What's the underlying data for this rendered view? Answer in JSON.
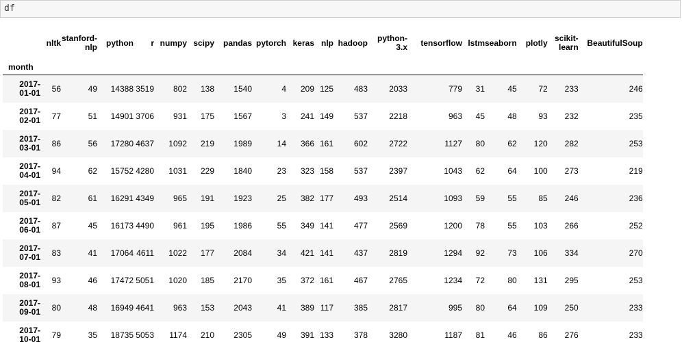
{
  "input": {
    "code": "df"
  },
  "table": {
    "index_name": "month",
    "columns": [
      "nltk",
      "stanford-nlp",
      "python",
      "r",
      "numpy",
      "scipy",
      "pandas",
      "pytorch",
      "keras",
      "nlp",
      "hadoop",
      "python-3.x",
      "tensorflow",
      "lstm",
      "seaborn",
      "plotly",
      "scikit-learn",
      "BeautifulSoup"
    ],
    "column_display": [
      [
        "nltk"
      ],
      [
        "stanford-",
        "nlp"
      ],
      [
        "python"
      ],
      [
        "r"
      ],
      [
        "numpy"
      ],
      [
        "scipy"
      ],
      [
        "pandas"
      ],
      [
        "pytorch"
      ],
      [
        "keras"
      ],
      [
        "nlp"
      ],
      [
        "hadoop"
      ],
      [
        "python-",
        "3.x"
      ],
      [
        "tensorflow"
      ],
      [
        "lstm"
      ],
      [
        "seaborn"
      ],
      [
        "plotly"
      ],
      [
        "scikit-",
        "learn"
      ],
      [
        "BeautifulSoup"
      ]
    ],
    "rows": [
      {
        "index": [
          "2017-",
          "01-01"
        ],
        "values": [
          "56",
          "49",
          "14388",
          "3519",
          "802",
          "138",
          "1540",
          "4",
          "209",
          "125",
          "483",
          "2033",
          "779",
          "31",
          "45",
          "72",
          "233",
          "246"
        ]
      },
      {
        "index": [
          "2017-",
          "02-01"
        ],
        "values": [
          "77",
          "51",
          "14901",
          "3706",
          "931",
          "175",
          "1567",
          "3",
          "241",
          "149",
          "537",
          "2218",
          "963",
          "45",
          "48",
          "93",
          "232",
          "235"
        ]
      },
      {
        "index": [
          "2017-",
          "03-01"
        ],
        "values": [
          "86",
          "56",
          "17280",
          "4637",
          "1092",
          "219",
          "1989",
          "14",
          "366",
          "161",
          "602",
          "2722",
          "1127",
          "80",
          "62",
          "120",
          "282",
          "253"
        ]
      },
      {
        "index": [
          "2017-",
          "04-01"
        ],
        "values": [
          "94",
          "62",
          "15752",
          "4280",
          "1031",
          "229",
          "1840",
          "23",
          "323",
          "158",
          "537",
          "2397",
          "1043",
          "62",
          "64",
          "100",
          "273",
          "219"
        ]
      },
      {
        "index": [
          "2017-",
          "05-01"
        ],
        "values": [
          "82",
          "61",
          "16291",
          "4349",
          "965",
          "191",
          "1923",
          "25",
          "382",
          "177",
          "493",
          "2514",
          "1093",
          "59",
          "55",
          "85",
          "246",
          "236"
        ]
      },
      {
        "index": [
          "2017-",
          "06-01"
        ],
        "values": [
          "87",
          "45",
          "16173",
          "4490",
          "961",
          "195",
          "1986",
          "55",
          "349",
          "141",
          "477",
          "2569",
          "1200",
          "78",
          "55",
          "103",
          "266",
          "252"
        ]
      },
      {
        "index": [
          "2017-",
          "07-01"
        ],
        "values": [
          "83",
          "41",
          "17064",
          "4611",
          "1022",
          "177",
          "2084",
          "34",
          "421",
          "141",
          "437",
          "2819",
          "1294",
          "92",
          "73",
          "106",
          "334",
          "270"
        ]
      },
      {
        "index": [
          "2017-",
          "08-01"
        ],
        "values": [
          "93",
          "46",
          "17472",
          "5051",
          "1020",
          "185",
          "2170",
          "35",
          "372",
          "161",
          "467",
          "2765",
          "1234",
          "72",
          "80",
          "131",
          "295",
          "253"
        ]
      },
      {
        "index": [
          "2017-",
          "09-01"
        ],
        "values": [
          "80",
          "48",
          "16949",
          "4641",
          "963",
          "153",
          "2043",
          "41",
          "389",
          "117",
          "385",
          "2817",
          "995",
          "80",
          "64",
          "109",
          "250",
          "233"
        ]
      },
      {
        "index": [
          "2017-",
          "10-01"
        ],
        "values": [
          "79",
          "35",
          "18735",
          "5053",
          "1174",
          "210",
          "2305",
          "49",
          "391",
          "133",
          "378",
          "3280",
          "1187",
          "81",
          "46",
          "86",
          "276",
          "233"
        ]
      }
    ]
  }
}
